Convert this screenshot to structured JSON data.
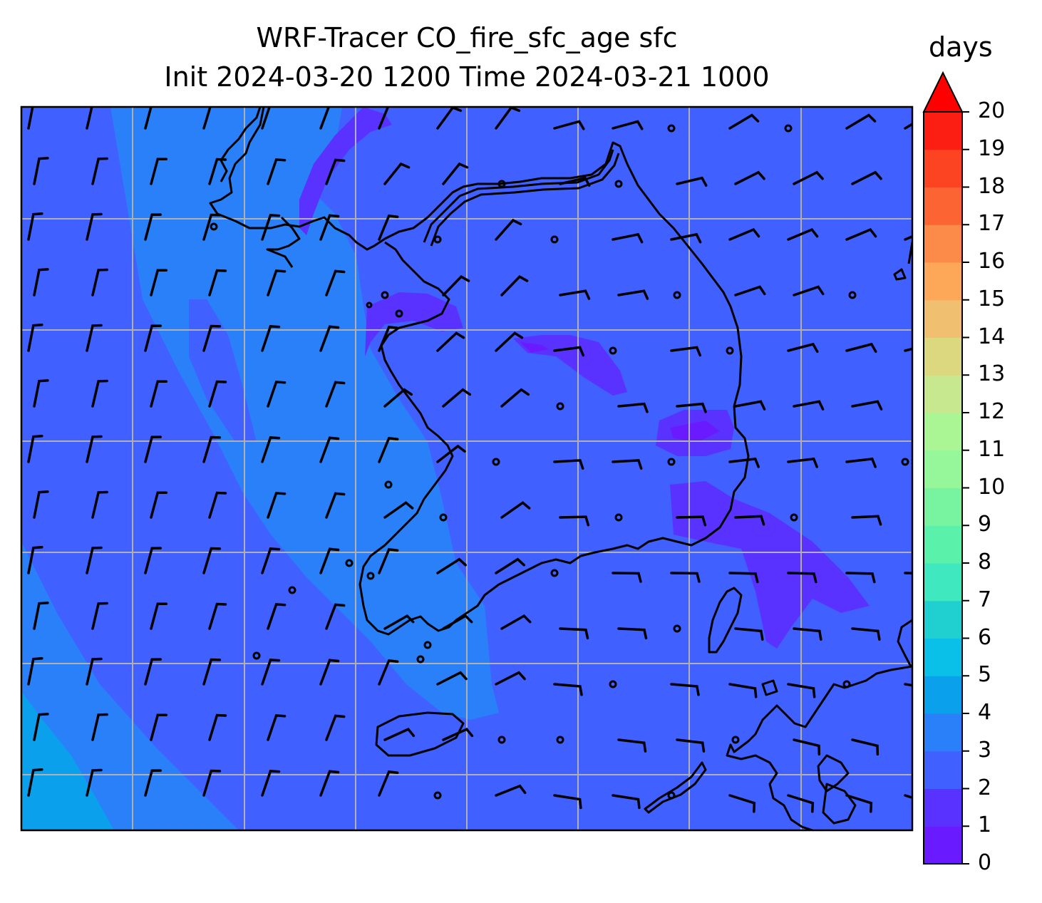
{
  "title": {
    "line1": "WRF-Tracer CO_fire_sfc_age sfc",
    "line2": "Init 2024-03-20 1200 Time 2024-03-21 1000"
  },
  "colorbar": {
    "units": "days",
    "ticks": [
      "0",
      "1",
      "2",
      "3",
      "4",
      "5",
      "6",
      "7",
      "8",
      "9",
      "10",
      "11",
      "12",
      "13",
      "14",
      "15",
      "16",
      "17",
      "18",
      "19",
      "20"
    ],
    "colors": [
      "#6a1aff",
      "#5a32ff",
      "#4060ff",
      "#2a80f8",
      "#0aa0ec",
      "#0ac0e8",
      "#20d0d0",
      "#40e8c0",
      "#5af2aa",
      "#78f4a0",
      "#96f69a",
      "#aaf594",
      "#c8e890",
      "#dcd880",
      "#f0c070",
      "#fca858",
      "#fc8a48",
      "#fc6434",
      "#fc4422",
      "#fc1e12"
    ],
    "extend_color": "#ff0000"
  },
  "map_data": {
    "field": "CO_fire_sfc_age",
    "level": "sfc",
    "colors": {
      "background": "#4060ff",
      "band_3_4": "#2a80f8",
      "band_4_5": "#0aa0ec",
      "band_1_2": "#5a32ff",
      "coastline": "#000000",
      "gridline": "#b0b0b0"
    },
    "wind_barbs": "black",
    "gridlines": true
  }
}
